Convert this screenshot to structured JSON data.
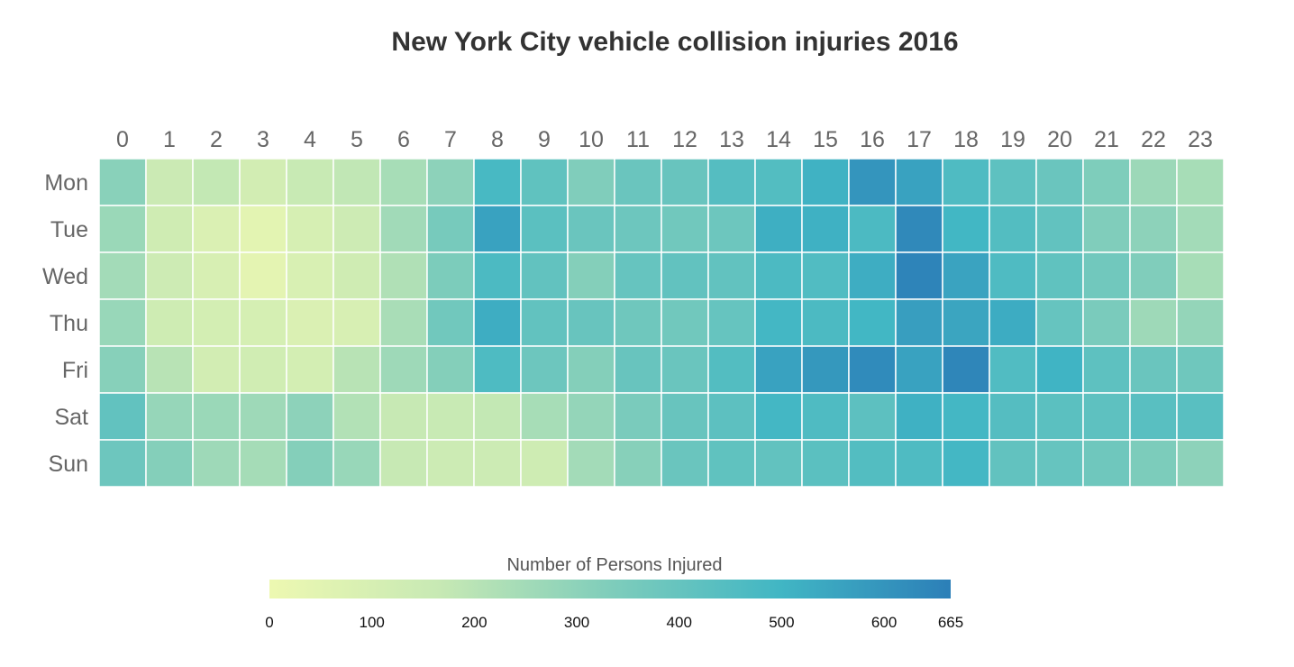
{
  "chart_data": {
    "type": "heatmap",
    "title": "New York City vehicle collision injuries 2016",
    "x_categories": [
      "0",
      "1",
      "2",
      "3",
      "4",
      "5",
      "6",
      "7",
      "8",
      "9",
      "10",
      "11",
      "12",
      "13",
      "14",
      "15",
      "16",
      "17",
      "18",
      "19",
      "20",
      "21",
      "22",
      "23"
    ],
    "y_categories": [
      "Mon",
      "Tue",
      "Wed",
      "Thu",
      "Fri",
      "Sat",
      "Sun"
    ],
    "values": [
      [
        310,
        150,
        175,
        120,
        160,
        180,
        240,
        300,
        480,
        415,
        330,
        390,
        395,
        445,
        450,
        510,
        600,
        560,
        460,
        420,
        390,
        335,
        265,
        240
      ],
      [
        270,
        130,
        85,
        45,
        100,
        140,
        255,
        355,
        560,
        430,
        390,
        380,
        370,
        380,
        520,
        515,
        470,
        635,
        495,
        450,
        410,
        330,
        300,
        250
      ],
      [
        250,
        140,
        95,
        40,
        90,
        130,
        220,
        340,
        470,
        410,
        320,
        400,
        410,
        410,
        470,
        455,
        525,
        650,
        555,
        460,
        415,
        370,
        330,
        240
      ],
      [
        275,
        135,
        115,
        105,
        85,
        95,
        235,
        370,
        525,
        410,
        395,
        375,
        370,
        400,
        490,
        470,
        495,
        570,
        550,
        530,
        400,
        345,
        260,
        285
      ],
      [
        315,
        200,
        120,
        125,
        115,
        200,
        260,
        320,
        465,
        380,
        320,
        395,
        390,
        450,
        560,
        590,
        630,
        560,
        645,
        455,
        505,
        420,
        390,
        375
      ],
      [
        410,
        280,
        270,
        260,
        300,
        215,
        165,
        160,
        175,
        240,
        285,
        345,
        395,
        425,
        490,
        460,
        425,
        515,
        490,
        445,
        430,
        420,
        435,
        435
      ],
      [
        380,
        320,
        260,
        245,
        320,
        275,
        165,
        145,
        145,
        135,
        250,
        315,
        390,
        415,
        410,
        430,
        450,
        460,
        490,
        410,
        400,
        375,
        340,
        300
      ]
    ],
    "colorbar": {
      "title": "Number of Persons Injured",
      "min": 0,
      "max": 665,
      "ticks": [
        0,
        100,
        200,
        300,
        400,
        500,
        600,
        665
      ],
      "colorscale": [
        "#edf8b1",
        "#c7e9b4",
        "#7fcdbb",
        "#41b6c4",
        "#2c7fb8"
      ]
    }
  }
}
